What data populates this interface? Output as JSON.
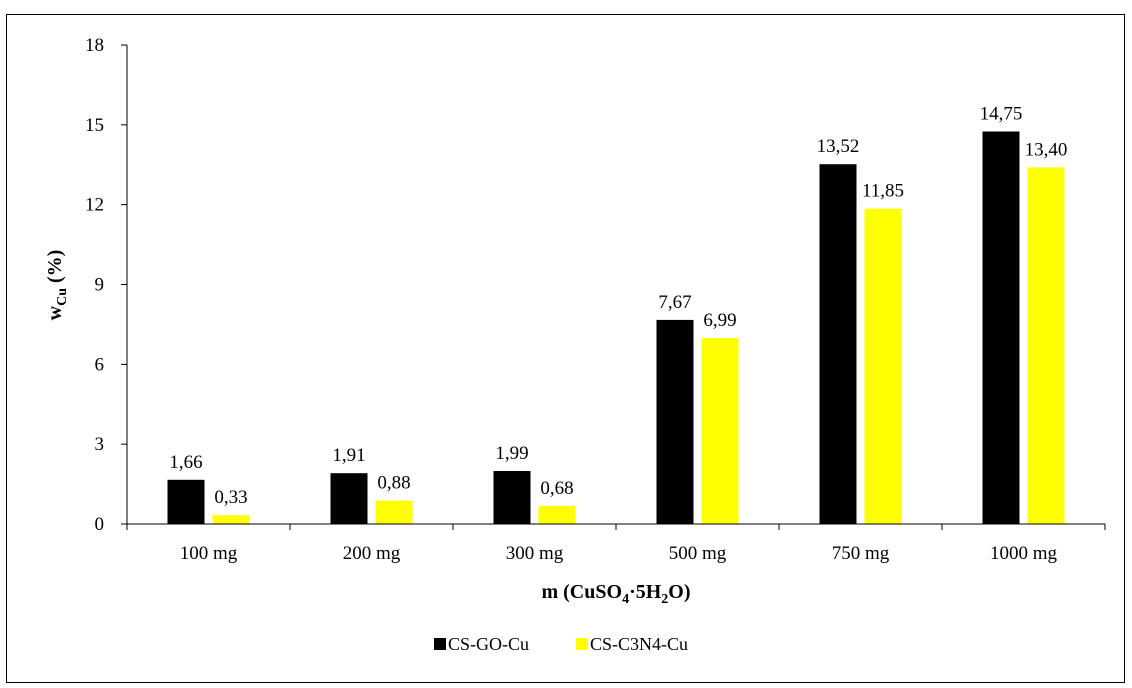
{
  "chart_data": {
    "type": "bar",
    "categories": [
      "100 mg",
      "200 mg",
      "300 mg",
      "500 mg",
      "750 mg",
      "1000 mg"
    ],
    "series": [
      {
        "name": "CS-GO-Cu",
        "color": "#000000",
        "values": [
          1.66,
          1.91,
          1.99,
          7.67,
          13.52,
          14.75
        ],
        "labels": [
          "1,66",
          "1,91",
          "1,99",
          "7,67",
          "13,52",
          "14,75"
        ]
      },
      {
        "name": "CS-C3N4-Cu",
        "color": "#ffff00",
        "values": [
          0.33,
          0.88,
          0.68,
          6.99,
          11.85,
          13.4
        ],
        "labels": [
          "0,33",
          "0,88",
          "0,68",
          "6,99",
          "11,85",
          "13,40"
        ]
      }
    ],
    "yticks": [
      "0",
      "3",
      "6",
      "9",
      "12",
      "15",
      "18"
    ],
    "ylim": [
      0,
      18
    ],
    "ylabel": {
      "main": "w",
      "sub": "Cu",
      "rest": " (%)"
    },
    "xlabel": {
      "p1": "m (CuSO",
      "s1": "4",
      "p2": "·5H",
      "s2": "2",
      "p3": "O)"
    },
    "grid": false,
    "legend_position": "bottom-center"
  }
}
